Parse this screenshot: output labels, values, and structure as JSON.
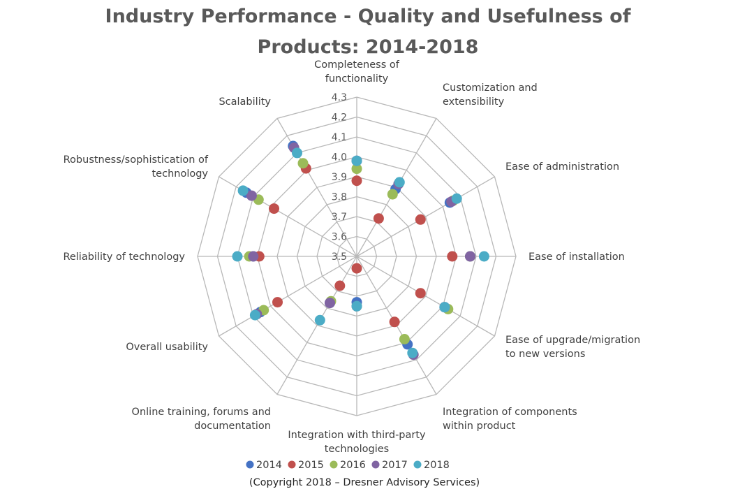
{
  "chart_data": {
    "type": "radar",
    "title": "Industry Performance - Quality and Usefulness of Products: 2014-2018",
    "title_lines": [
      "Industry Performance - Quality and Usefulness of",
      "Products: 2014-2018"
    ],
    "axes": [
      {
        "label": "Completeness of functionality",
        "lines": [
          "Completeness of",
          "functionality"
        ]
      },
      {
        "label": "Customization and extensibility",
        "lines": [
          "Customization and",
          "extensibility"
        ]
      },
      {
        "label": "Ease of administration",
        "lines": [
          "Ease of administration"
        ]
      },
      {
        "label": "Ease of installation",
        "lines": [
          "Ease of installation"
        ]
      },
      {
        "label": "Ease of upgrade/migration to new versions",
        "lines": [
          "Ease of upgrade/migration",
          "to new versions"
        ]
      },
      {
        "label": "Integration of components within product",
        "lines": [
          "Integration of components",
          "within product"
        ]
      },
      {
        "label": "Integration with third-party technologies",
        "lines": [
          "Integration with third-party",
          "technologies"
        ]
      },
      {
        "label": "Online training, forums and documentation",
        "lines": [
          "Online training, forums and",
          "documentation"
        ]
      },
      {
        "label": "Overall usability",
        "lines": [
          "Overall usability"
        ]
      },
      {
        "label": "Reliability of technology",
        "lines": [
          "Reliability of technology"
        ]
      },
      {
        "label": "Robustness/sophistication of technology",
        "lines": [
          "Robustness/sophistication of",
          "technology"
        ]
      },
      {
        "label": "Scalability",
        "lines": [
          "Scalability"
        ]
      }
    ],
    "rmin": 3.5,
    "rmax": 4.3,
    "ticks": [
      "3.5",
      "3.6",
      "3.7",
      "3.8",
      "3.9",
      "4.0",
      "4.1",
      "4.2",
      "4.3"
    ],
    "series": [
      {
        "name": "2014",
        "color": "#4472C4",
        "values": [
          3.98,
          3.89,
          4.04,
          4.07,
          4.01,
          4.01,
          3.73,
          3.77,
          4.06,
          4.02,
          4.14,
          4.14
        ]
      },
      {
        "name": "2015",
        "color": "#C0504D",
        "values": [
          3.88,
          3.72,
          3.87,
          3.98,
          3.87,
          3.88,
          3.56,
          3.67,
          3.96,
          3.99,
          3.98,
          4.01
        ]
      },
      {
        "name": "2016",
        "color": "#9BBB59",
        "values": [
          3.94,
          3.86,
          4.06,
          4.07,
          4.03,
          3.98,
          3.75,
          3.76,
          4.04,
          4.04,
          4.07,
          4.04
        ]
      },
      {
        "name": "2017",
        "color": "#8064A2",
        "values": [
          3.98,
          3.92,
          4.05,
          4.07,
          4.01,
          4.07,
          3.75,
          3.77,
          4.08,
          4.02,
          4.11,
          4.13
        ]
      },
      {
        "name": "2018",
        "color": "#4BACC6",
        "values": [
          3.98,
          3.93,
          4.08,
          4.14,
          4.01,
          4.06,
          3.75,
          3.87,
          4.09,
          4.1,
          4.16,
          4.1
        ]
      }
    ],
    "legend": [
      "2014",
      "2015",
      "2016",
      "2017",
      "2018"
    ],
    "legend_position": "bottom",
    "copyright": "(Copyright 2018 – Dresner Advisory Services)"
  }
}
